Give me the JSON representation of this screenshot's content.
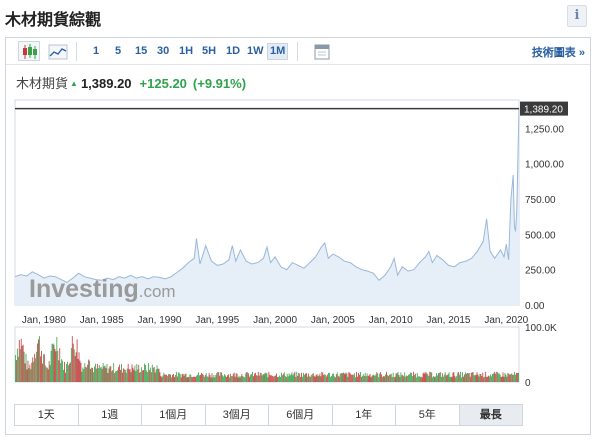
{
  "page": {
    "title": "木材期貨綜觀",
    "info_label": "i"
  },
  "toolbar": {
    "intervals": [
      "1",
      "5",
      "15",
      "30",
      "1H",
      "5H",
      "1D",
      "1W",
      "1M"
    ],
    "active_interval": "1M",
    "tech_link": "技術圖表 »"
  },
  "quote": {
    "name": "木材期貨",
    "price": "1,389.20",
    "change": "+125.20",
    "change_pct": "(+9.91%)"
  },
  "watermark": {
    "brand": "Investing",
    "suffix": ".com"
  },
  "ranges": [
    "1天",
    "1週",
    "1個月",
    "3個月",
    "6個月",
    "1年",
    "5年",
    "最長"
  ],
  "active_range": "最長",
  "colors": {
    "line": "#9ab8d9",
    "area": "#e6eef7",
    "up": "#3aa14a",
    "down": "#c43b3b",
    "link": "#2a5fa1",
    "up_text": "#2ea34b"
  },
  "chart_data": {
    "type": "area",
    "x_start_year": 1977.5,
    "x_end_year": 2021.1,
    "xticks": [
      "Jan, 1980",
      "Jan, 1985",
      "Jan, 1990",
      "Jan, 1995",
      "Jan, 2000",
      "Jan, 2005",
      "Jan, 2010",
      "Jan, 2015",
      "Jan, 2020"
    ],
    "xtick_years": [
      1980,
      1985,
      1990,
      1995,
      2000,
      2005,
      2010,
      2015,
      2020
    ],
    "yticks": [
      "0.00",
      "250.00",
      "500.00",
      "750.00",
      "1,000.00",
      "1,250.00"
    ],
    "ytick_values": [
      0,
      250,
      500,
      750,
      1000,
      1250
    ],
    "ylim": [
      0,
      1450
    ],
    "last_price": 1389.2,
    "last_price_label": "1,389.20",
    "price": [
      [
        1977.5,
        200
      ],
      [
        1978.0,
        215
      ],
      [
        1978.5,
        205
      ],
      [
        1979.0,
        235
      ],
      [
        1979.5,
        215
      ],
      [
        1980.0,
        190
      ],
      [
        1980.5,
        205
      ],
      [
        1981.0,
        200
      ],
      [
        1981.5,
        180
      ],
      [
        1982.0,
        160
      ],
      [
        1982.5,
        190
      ],
      [
        1983.0,
        225
      ],
      [
        1983.5,
        200
      ],
      [
        1984.0,
        190
      ],
      [
        1984.5,
        180
      ],
      [
        1985.0,
        175
      ],
      [
        1985.5,
        190
      ],
      [
        1986.0,
        180
      ],
      [
        1986.5,
        200
      ],
      [
        1987.0,
        190
      ],
      [
        1987.5,
        210
      ],
      [
        1988.0,
        190
      ],
      [
        1988.5,
        200
      ],
      [
        1989.0,
        185
      ],
      [
        1989.5,
        200
      ],
      [
        1990.0,
        195
      ],
      [
        1990.5,
        185
      ],
      [
        1991.0,
        200
      ],
      [
        1991.5,
        230
      ],
      [
        1992.0,
        260
      ],
      [
        1992.5,
        300
      ],
      [
        1993.0,
        330
      ],
      [
        1993.2,
        470
      ],
      [
        1993.5,
        290
      ],
      [
        1994.0,
        420
      ],
      [
        1994.5,
        310
      ],
      [
        1995.0,
        280
      ],
      [
        1995.5,
        290
      ],
      [
        1996.0,
        320
      ],
      [
        1996.3,
        420
      ],
      [
        1996.6,
        310
      ],
      [
        1997.0,
        390
      ],
      [
        1997.5,
        310
      ],
      [
        1998.0,
        290
      ],
      [
        1998.5,
        300
      ],
      [
        1999.0,
        330
      ],
      [
        1999.3,
        410
      ],
      [
        1999.6,
        300
      ],
      [
        2000.0,
        340
      ],
      [
        2000.5,
        270
      ],
      [
        2001.0,
        250
      ],
      [
        2001.5,
        300
      ],
      [
        2002.0,
        280
      ],
      [
        2002.5,
        260
      ],
      [
        2003.0,
        300
      ],
      [
        2003.5,
        340
      ],
      [
        2004.0,
        410
      ],
      [
        2004.3,
        440
      ],
      [
        2004.6,
        330
      ],
      [
        2005.0,
        360
      ],
      [
        2005.5,
        340
      ],
      [
        2006.0,
        310
      ],
      [
        2006.5,
        300
      ],
      [
        2007.0,
        270
      ],
      [
        2007.5,
        250
      ],
      [
        2008.0,
        240
      ],
      [
        2008.5,
        225
      ],
      [
        2009.0,
        175
      ],
      [
        2009.5,
        210
      ],
      [
        2010.0,
        270
      ],
      [
        2010.3,
        330
      ],
      [
        2010.6,
        210
      ],
      [
        2011.0,
        270
      ],
      [
        2011.5,
        240
      ],
      [
        2012.0,
        250
      ],
      [
        2012.5,
        300
      ],
      [
        2013.0,
        340
      ],
      [
        2013.3,
        380
      ],
      [
        2013.6,
        300
      ],
      [
        2014.0,
        350
      ],
      [
        2014.5,
        320
      ],
      [
        2015.0,
        280
      ],
      [
        2015.5,
        270
      ],
      [
        2016.0,
        300
      ],
      [
        2016.5,
        310
      ],
      [
        2017.0,
        330
      ],
      [
        2017.5,
        380
      ],
      [
        2018.0,
        450
      ],
      [
        2018.3,
        610
      ],
      [
        2018.6,
        380
      ],
      [
        2019.0,
        330
      ],
      [
        2019.5,
        390
      ],
      [
        2019.8,
        340
      ],
      [
        2020.0,
        430
      ],
      [
        2020.2,
        320
      ],
      [
        2020.4,
        750
      ],
      [
        2020.6,
        920
      ],
      [
        2020.7,
        560
      ],
      [
        2020.8,
        520
      ],
      [
        2020.9,
        650
      ],
      [
        2021.0,
        1000
      ],
      [
        2021.1,
        1389
      ]
    ],
    "volume_ylim": [
      0,
      100000
    ],
    "volume_yticks": [
      "0",
      "100.0K"
    ],
    "volume_ytick_values": [
      0,
      100000
    ]
  }
}
